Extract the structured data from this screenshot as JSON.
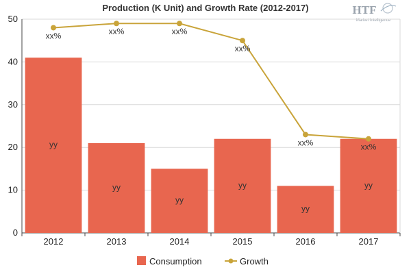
{
  "chart_data": {
    "type": "bar",
    "title": "Production (K Unit) and Growth Rate (2012-2017)",
    "categories": [
      "2012",
      "2013",
      "2014",
      "2015",
      "2016",
      "2017"
    ],
    "ylim": [
      0,
      50
    ],
    "yticks": [
      "0",
      "10",
      "20",
      "30",
      "40",
      "50"
    ],
    "grid": true,
    "legend_position": "bottom",
    "series": [
      {
        "name": "Consumption",
        "kind": "bar",
        "color": "#e8664f",
        "values": [
          41,
          21,
          15,
          22,
          11,
          22
        ],
        "labels": [
          "yy",
          "yy",
          "yy",
          "yy",
          "yy",
          "yy"
        ]
      },
      {
        "name": "Growth",
        "kind": "line",
        "color": "#c9a43a",
        "values": [
          48,
          49,
          49,
          45,
          23,
          22
        ],
        "labels": [
          "xx%",
          "xx%",
          "xx%",
          "xx%",
          "xx%",
          "xx%"
        ]
      }
    ]
  },
  "logo": {
    "brand": "HTF",
    "tagline": "Market Intelligence"
  }
}
